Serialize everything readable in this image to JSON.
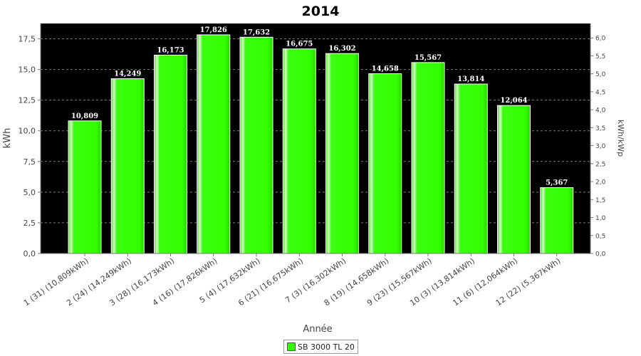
{
  "chart_data": {
    "type": "bar",
    "title": "2014",
    "xlabel": "Année",
    "ylabel": "kWh",
    "y2label": "kWh/kWp",
    "ylim": [
      0,
      18.75
    ],
    "y2lim": [
      0,
      6.4
    ],
    "yticks": [
      "0,0",
      "2,5",
      "5,0",
      "7,5",
      "10,0",
      "12,5",
      "15,0",
      "17,5"
    ],
    "y2ticks": [
      "0,0",
      "0,5",
      "1,0",
      "1,5",
      "2,0",
      "2,5",
      "3,0",
      "3,5",
      "4,0",
      "4,5",
      "5,0",
      "5,5",
      "6,0"
    ],
    "categories": [
      "1 (31)  (10,809kWh)",
      "2 (24)  (14,249kWh)",
      "3 (28)  (16,173kWh)",
      "4 (16)  (17,826kWh)",
      "5 (4)  (17,632kWh)",
      "6 (21)  (16,675kWh)",
      "7 (3)  (16,302kWh)",
      "8 (19)  (14,658kWh)",
      "9 (23)  (15,567kWh)",
      "10 (3)  (13,814kWh)",
      "11 (6)  (12,064kWh)",
      "12 (22)  (5,367kWh)"
    ],
    "values": [
      10.809,
      14.249,
      16.173,
      17.826,
      17.632,
      16.675,
      16.302,
      14.658,
      15.567,
      13.814,
      12.064,
      5.367
    ],
    "data_labels": [
      "10,809",
      "14,249",
      "16,173",
      "17,826",
      "17,632",
      "16,675",
      "16,302",
      "14,658",
      "15,567",
      "13,814",
      "12,064",
      "5,367"
    ],
    "series": [
      {
        "name": "SB 3000 TL 20"
      }
    ],
    "colors": {
      "bar": "#33ff00",
      "plot_background": "#000000",
      "grid": "#7a7a7a"
    },
    "grid": true,
    "legend": "bottom-center"
  }
}
